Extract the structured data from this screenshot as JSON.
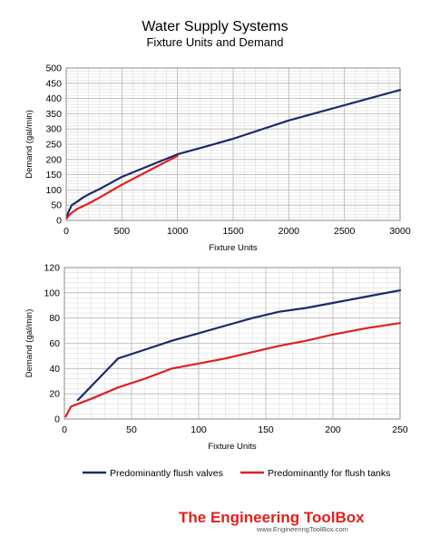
{
  "title": "Water Supply Systems",
  "subtitle": "Fixture Units and Demand",
  "colors": {
    "flush_valves": "#1b2a6b",
    "flush_tanks": "#e31e1e",
    "grid": "#c8c8c8"
  },
  "legend": {
    "placement": "bottom-center",
    "items": [
      "Predominantly flush valves",
      "Predominantly for flush tanks"
    ]
  },
  "brand": {
    "name": "The Engineering ToolBox",
    "url": "www.EngineeringToolBox.com"
  },
  "chart_data": [
    {
      "type": "line",
      "xlabel": "Fixture Units",
      "ylabel": "Demand (gal/min)",
      "xlim": [
        0,
        3000
      ],
      "ylim": [
        0,
        500
      ],
      "xticks": [
        0,
        500,
        1000,
        1500,
        2000,
        2500,
        3000
      ],
      "yticks": [
        0,
        50,
        100,
        150,
        200,
        250,
        300,
        350,
        400,
        450,
        500
      ],
      "grid": true,
      "series": [
        {
          "name": "Predominantly flush valves",
          "x": [
            10,
            20,
            50,
            100,
            150,
            200,
            300,
            400,
            500,
            750,
            1000,
            1250,
            1500,
            2000,
            2500,
            3000
          ],
          "y": [
            15,
            28,
            50,
            62,
            75,
            85,
            103,
            123,
            143,
            180,
            217,
            242,
            268,
            328,
            378,
            428
          ]
        },
        {
          "name": "Predominantly for flush tanks",
          "x": [
            5,
            20,
            50,
            100,
            200,
            300,
            500,
            750,
            1000
          ],
          "y": [
            7,
            15,
            25,
            38,
            55,
            75,
            117,
            165,
            212
          ]
        }
      ]
    },
    {
      "type": "line",
      "xlabel": "Fixture Units",
      "ylabel": "Demand (gal/min)",
      "xlim": [
        0,
        250
      ],
      "ylim": [
        0,
        120
      ],
      "xticks": [
        0,
        50,
        100,
        150,
        200,
        250
      ],
      "yticks": [
        0,
        20,
        40,
        60,
        80,
        100,
        120
      ],
      "grid": true,
      "series": [
        {
          "name": "Predominantly flush valves",
          "x": [
            10,
            20,
            30,
            40,
            60,
            80,
            100,
            120,
            140,
            160,
            180,
            200,
            225,
            250
          ],
          "y": [
            15,
            26,
            37,
            48,
            55,
            62,
            68,
            74,
            80,
            85,
            88,
            92,
            97,
            102
          ]
        },
        {
          "name": "Predominantly for flush tanks",
          "x": [
            1,
            3,
            5,
            10,
            20,
            40,
            60,
            80,
            100,
            120,
            140,
            160,
            180,
            200,
            225,
            250
          ],
          "y": [
            2,
            6,
            10,
            12,
            16,
            25,
            32,
            40,
            44,
            48,
            53,
            58,
            62,
            67,
            72,
            76
          ]
        }
      ]
    }
  ]
}
